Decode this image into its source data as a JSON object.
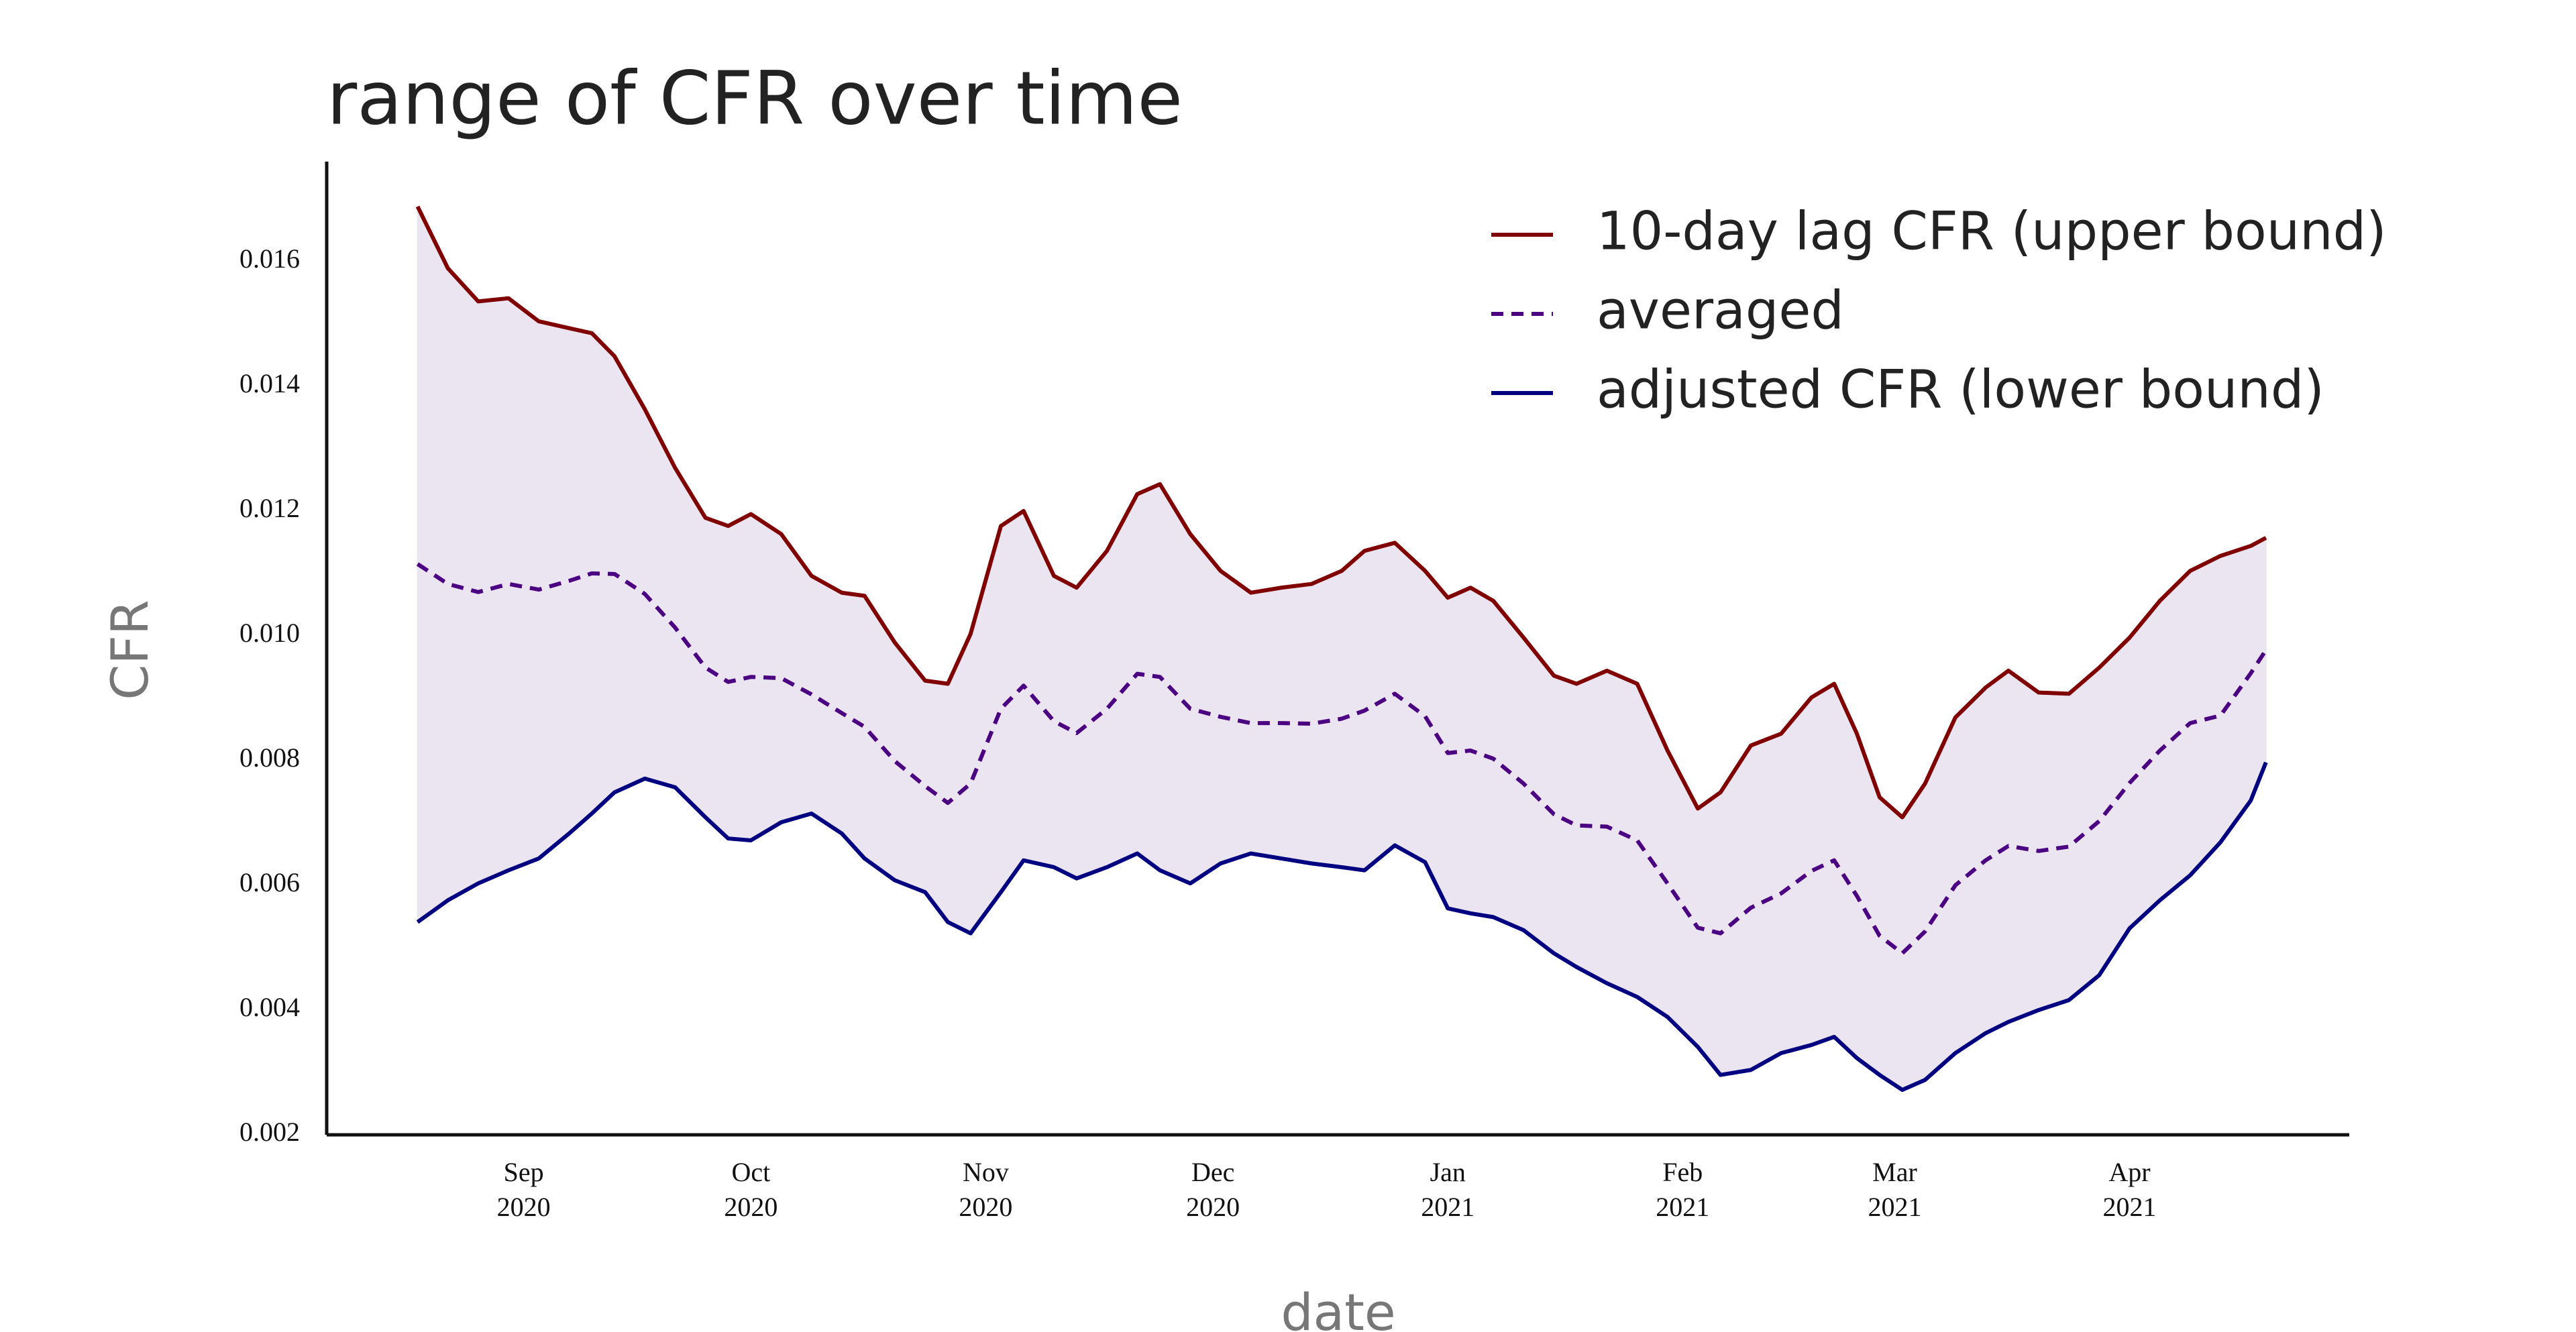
{
  "chart_data": {
    "type": "line",
    "title": "range of CFR over time",
    "xlabel": "date",
    "ylabel": "CFR",
    "x": [
      "2020-08-18",
      "2020-08-22",
      "2020-08-26",
      "2020-08-30",
      "2020-09-03",
      "2020-09-07",
      "2020-09-10",
      "2020-09-13",
      "2020-09-17",
      "2020-09-21",
      "2020-09-25",
      "2020-09-28",
      "2020-10-01",
      "2020-10-05",
      "2020-10-09",
      "2020-10-13",
      "2020-10-16",
      "2020-10-20",
      "2020-10-24",
      "2020-10-27",
      "2020-10-30",
      "2020-11-03",
      "2020-11-06",
      "2020-11-10",
      "2020-11-13",
      "2020-11-17",
      "2020-11-21",
      "2020-11-24",
      "2020-11-28",
      "2020-12-02",
      "2020-12-06",
      "2020-12-10",
      "2020-12-14",
      "2020-12-18",
      "2020-12-21",
      "2020-12-25",
      "2020-12-29",
      "2021-01-01",
      "2021-01-04",
      "2021-01-07",
      "2021-01-11",
      "2021-01-15",
      "2021-01-18",
      "2021-01-22",
      "2021-01-26",
      "2021-01-30",
      "2021-02-03",
      "2021-02-06",
      "2021-02-10",
      "2021-02-14",
      "2021-02-18",
      "2021-02-21",
      "2021-02-24",
      "2021-02-27",
      "2021-03-02",
      "2021-03-05",
      "2021-03-09",
      "2021-03-13",
      "2021-03-16",
      "2021-03-20",
      "2021-03-24",
      "2021-03-28",
      "2021-04-01",
      "2021-04-05",
      "2021-04-09",
      "2021-04-13",
      "2021-04-17",
      "2021-04-19"
    ],
    "series": [
      {
        "name": "10-day lag CFR (upper bound)",
        "color": "#800000",
        "dashed": false,
        "values": [
          0.01688,
          0.01589,
          0.01536,
          0.01541,
          0.01504,
          0.01493,
          0.01485,
          0.01448,
          0.01363,
          0.01269,
          0.01189,
          0.01176,
          0.01195,
          0.01163,
          0.01096,
          0.01069,
          0.01064,
          0.00989,
          0.00928,
          0.00923,
          0.01003,
          0.01176,
          0.012,
          0.01096,
          0.01077,
          0.01136,
          0.01227,
          0.01243,
          0.01163,
          0.01104,
          0.01069,
          0.01077,
          0.01083,
          0.01104,
          0.01136,
          0.01149,
          0.01104,
          0.01061,
          0.01077,
          0.01056,
          0.00997,
          0.00936,
          0.00923,
          0.00944,
          0.00923,
          0.00816,
          0.00723,
          0.00749,
          0.00824,
          0.00843,
          0.00901,
          0.00923,
          0.00843,
          0.00741,
          0.00709,
          0.00763,
          0.00869,
          0.00917,
          0.00944,
          0.00909,
          0.00907,
          0.00949,
          0.00997,
          0.01056,
          0.01104,
          0.01128,
          0.01144,
          0.01157
        ]
      },
      {
        "name": "averaged",
        "color": "#4b0082",
        "dashed": true,
        "values": [
          0.01115,
          0.01083,
          0.0107,
          0.01083,
          0.01074,
          0.01088,
          0.011,
          0.01099,
          0.01067,
          0.01013,
          0.00949,
          0.00926,
          0.00934,
          0.00932,
          0.00906,
          0.00876,
          0.00854,
          0.00799,
          0.00759,
          0.00732,
          0.00763,
          0.00883,
          0.0092,
          0.00863,
          0.00844,
          0.00883,
          0.00939,
          0.00934,
          0.00883,
          0.0087,
          0.0086,
          0.0086,
          0.00859,
          0.00867,
          0.0088,
          0.00907,
          0.00871,
          0.00812,
          0.00816,
          0.00803,
          0.00763,
          0.00714,
          0.00696,
          0.00694,
          0.00672,
          0.00603,
          0.00532,
          0.00523,
          0.00564,
          0.00587,
          0.00623,
          0.0064,
          0.00583,
          0.00519,
          0.00491,
          0.00526,
          0.006,
          0.0064,
          0.00663,
          0.00655,
          0.00662,
          0.00703,
          0.00764,
          0.00816,
          0.0086,
          0.00872,
          0.0094,
          0.00977
        ]
      },
      {
        "name": "adjusted CFR (lower bound)",
        "color": "#000080",
        "dashed": false,
        "values": [
          0.00541,
          0.00576,
          0.00603,
          0.00624,
          0.00643,
          0.00683,
          0.00715,
          0.00749,
          0.00771,
          0.00757,
          0.00709,
          0.00675,
          0.00672,
          0.00701,
          0.00715,
          0.00683,
          0.00643,
          0.00608,
          0.00589,
          0.00541,
          0.00523,
          0.00589,
          0.0064,
          0.00629,
          0.00611,
          0.00629,
          0.00651,
          0.00624,
          0.00603,
          0.00635,
          0.00651,
          0.00643,
          0.00635,
          0.00629,
          0.00624,
          0.00664,
          0.00637,
          0.00563,
          0.00555,
          0.00549,
          0.00528,
          0.00491,
          0.00469,
          0.00443,
          0.00421,
          0.00389,
          0.00341,
          0.00296,
          0.00304,
          0.00331,
          0.00344,
          0.00357,
          0.00323,
          0.00296,
          0.00272,
          0.00288,
          0.00331,
          0.00363,
          0.00381,
          0.004,
          0.00416,
          0.00456,
          0.00531,
          0.00576,
          0.00616,
          0.00669,
          0.00736,
          0.00797
        ]
      }
    ],
    "band_color": "#ebe5f2",
    "xlim": [
      "2020-08-06",
      "2021-04-30"
    ],
    "xticks": [
      {
        "value": "2020-09-01",
        "label": "Sep\n2020"
      },
      {
        "value": "2020-10-01",
        "label": "Oct\n2020"
      },
      {
        "value": "2020-11-01",
        "label": "Nov\n2020"
      },
      {
        "value": "2020-12-01",
        "label": "Dec\n2020"
      },
      {
        "value": "2021-01-01",
        "label": "Jan\n2021"
      },
      {
        "value": "2021-02-01",
        "label": "Feb\n2021"
      },
      {
        "value": "2021-03-01",
        "label": "Mar\n2021"
      },
      {
        "value": "2021-04-01",
        "label": "Apr\n2021"
      }
    ],
    "ylim": [
      0.002,
      0.0176
    ],
    "yticks": [
      0.002,
      0.004,
      0.006,
      0.008,
      {
        "value": 0.01,
        "label": "0.010"
      },
      0.012,
      0.014,
      0.016
    ],
    "grid": false,
    "legend": "upper right"
  }
}
